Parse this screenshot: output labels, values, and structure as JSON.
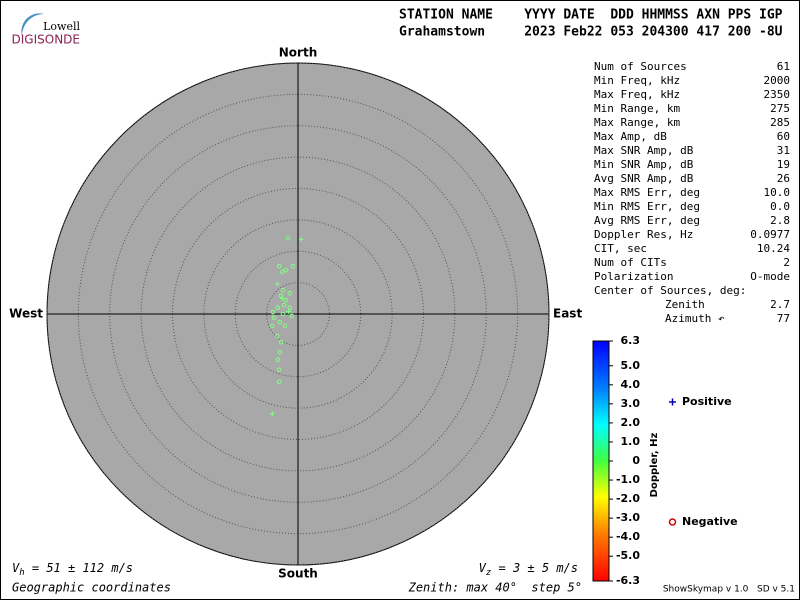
{
  "logo": {
    "top": "Lowell",
    "bottom": "DIGISONDE"
  },
  "header": {
    "row1": "STATION NAME    YYYY DATE  DDD HHMMSS AXN PPS IGP",
    "row2": "Grahamstown     2023 Feb22 053 204300 417 200 -8U"
  },
  "stats": [
    [
      "Num of Sources",
      "61"
    ],
    [
      "Min Freq, kHz",
      "2000"
    ],
    [
      "Max Freq, kHz",
      "2350"
    ],
    [
      "Min Range, km",
      "275"
    ],
    [
      "Max Range, km",
      "285"
    ],
    [
      "Max Amp, dB",
      "60"
    ],
    [
      "Max SNR Amp, dB",
      "31"
    ],
    [
      "Min SNR Amp, dB",
      "19"
    ],
    [
      "Avg SNR Amp, dB",
      "26"
    ],
    [
      "Max RMS Err, deg",
      "10.0"
    ],
    [
      "Min RMS Err, deg",
      "0.0"
    ],
    [
      "Avg RMS Err, deg",
      "2.8"
    ],
    [
      "Doppler Res, Hz",
      "0.0977"
    ],
    [
      "CIT, sec",
      "10.24"
    ],
    [
      "Num of CITs",
      "2"
    ],
    [
      "Polarization",
      "O-mode"
    ]
  ],
  "center_of_sources": {
    "title": "Center of Sources, deg:",
    "rows": [
      [
        "Zenith",
        "2.7"
      ],
      [
        "Azimuth ↶",
        "77"
      ]
    ]
  },
  "footer": {
    "vh": {
      "symbol": "V",
      "sub": "h",
      "text": " = 51 ± 112 m/s"
    },
    "vz": {
      "symbol": "V",
      "sub": "z",
      "text": " = 3 ± 5 m/s"
    },
    "coords": "Geographic coordinates",
    "zenith": "Zenith: max 40°  step 5°",
    "version": "ShowSkymap v 1.0   SD v 5.1"
  },
  "chart_data": {
    "type": "skymap",
    "directions": {
      "north": "North",
      "south": "South",
      "east": "East",
      "west": "West"
    },
    "rlim": [
      0,
      40
    ],
    "rticks": [
      5,
      10,
      15,
      20,
      25,
      30,
      35,
      40
    ],
    "point_color": "#80ff80",
    "series": [
      {
        "name": "Positive",
        "color": "#0000c0",
        "marker": "plus",
        "x": [
          0.5,
          -3.3,
          -4.1,
          -2.5,
          -1.5
        ],
        "y": [
          11.9,
          4.8,
          -15.9,
          2.5,
          0.4
        ]
      },
      {
        "name": "Negative",
        "color": "#cc0000",
        "marker": "circle",
        "x": [
          -1.6,
          -3.0,
          -0.8,
          -1.9,
          -2.5,
          -2.4,
          -1.3,
          -2.7,
          -1.9,
          -2.2,
          -3.2,
          -1.3,
          -4.0,
          -2.4,
          -1.0,
          -3.8,
          -2.9,
          -4.1,
          -2.1,
          -3.3,
          -2.7,
          -2.9,
          -3.2,
          -3.0,
          -3.0
        ],
        "y": [
          12.1,
          7.6,
          7.6,
          7.0,
          6.7,
          3.8,
          3.3,
          2.9,
          2.2,
          1.4,
          1.0,
          1.0,
          0.3,
          0.0,
          -0.3,
          -0.6,
          -1.3,
          -1.9,
          -1.9,
          -3.5,
          -4.5,
          -6.1,
          -7.3,
          -8.9,
          -10.8
        ]
      }
    ],
    "colorbar": {
      "label": "Doppler, Hz",
      "lim": [
        -6.3,
        6.3
      ],
      "ticks": [
        6.3,
        {
          "value": 5,
          "label": "5.0"
        },
        {
          "value": 4,
          "label": "4.0"
        },
        {
          "value": 3,
          "label": "3.0"
        },
        {
          "value": 2,
          "label": "2.0"
        },
        {
          "value": 1,
          "label": "1.0"
        },
        0,
        {
          "value": -1,
          "label": "-1.0"
        },
        {
          "value": -2,
          "label": "-2.0"
        },
        {
          "value": -3,
          "label": "-3.0"
        },
        {
          "value": -4,
          "label": "-4.0"
        },
        {
          "value": -5,
          "label": "-5.0"
        },
        -6.3
      ]
    }
  }
}
